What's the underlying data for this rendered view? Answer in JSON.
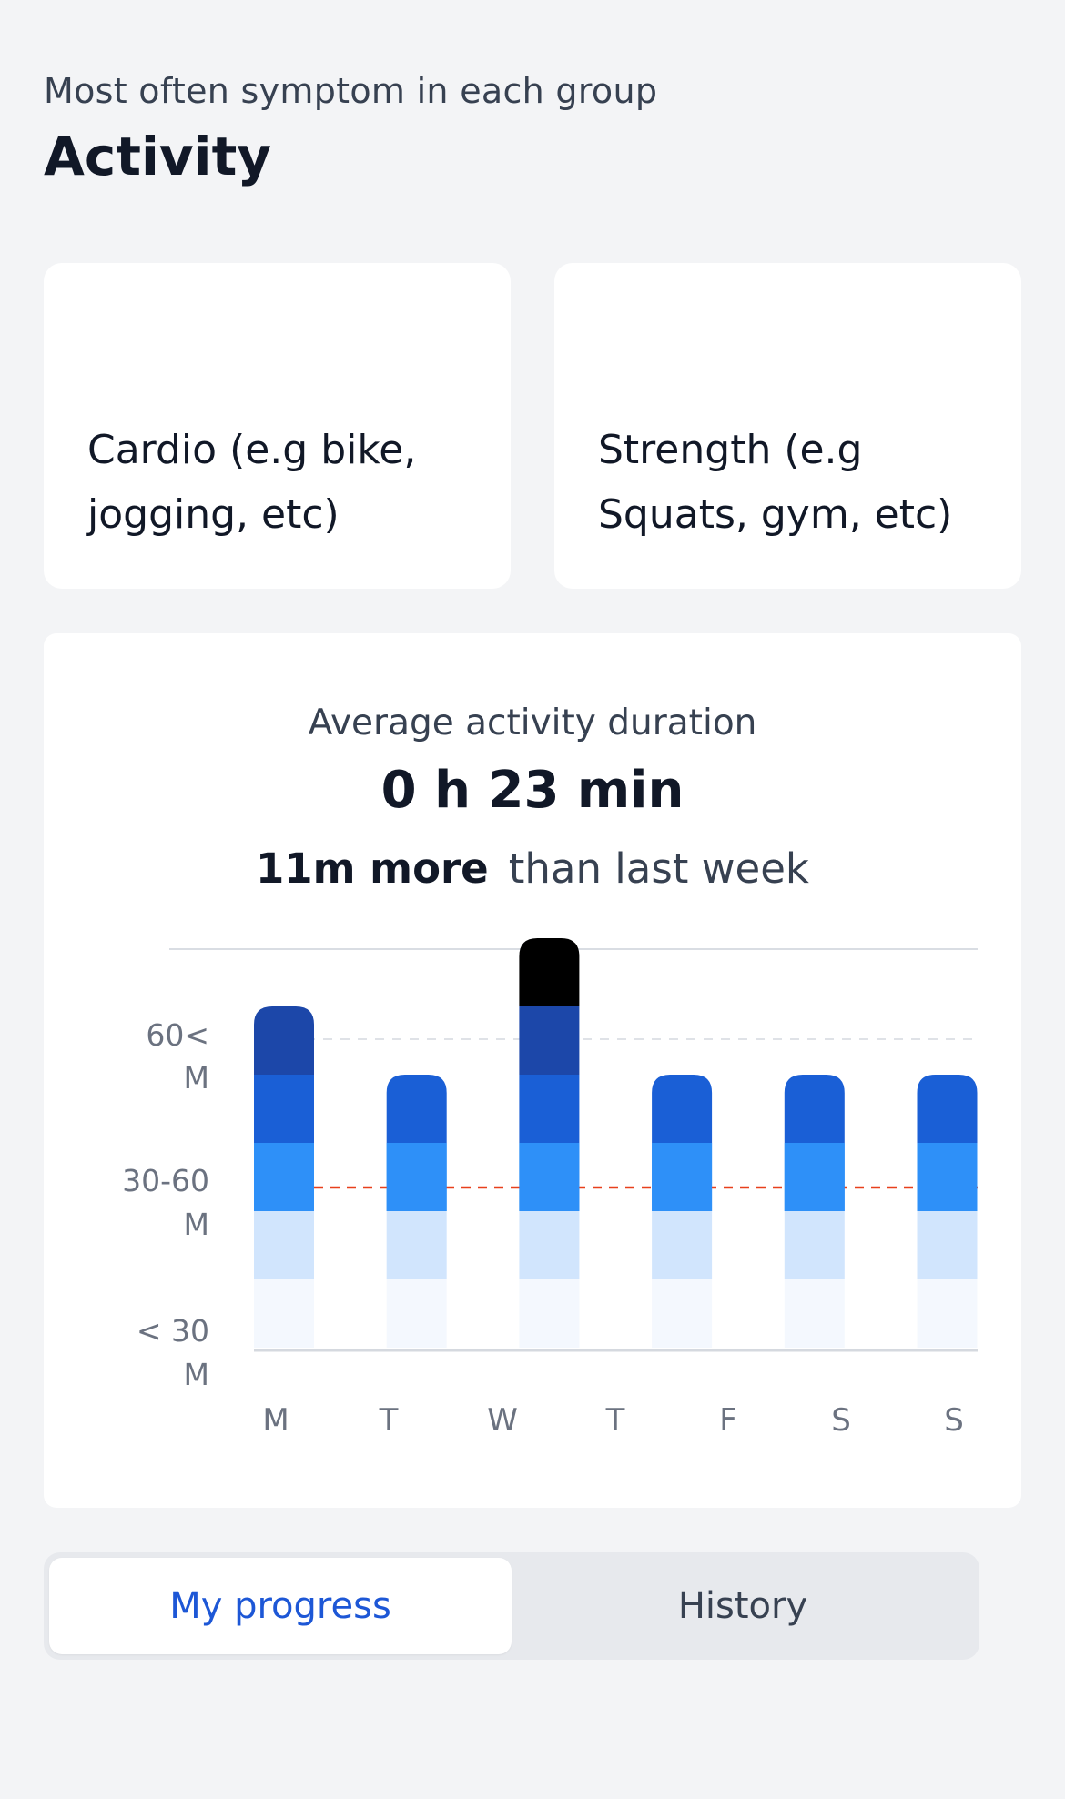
{
  "header": {
    "subtitle": "Most often symptom in each group",
    "title": "Activity"
  },
  "categories": [
    {
      "label": "Cardio (e.g bike, jogging, etc)"
    },
    {
      "label": "Strength (e.g Squats, gym, etc)"
    }
  ],
  "summary": {
    "label": "Average activity duration",
    "value": "0 h 23 min",
    "delta": "11m more",
    "delta_suffix": "than last week"
  },
  "chart_data": {
    "type": "bar",
    "categories": [
      "M",
      "T",
      "W",
      "T",
      "F",
      "S",
      "S"
    ],
    "values": [
      5,
      4,
      6,
      4,
      4,
      4,
      4
    ],
    "y_tick_labels": [
      {
        "line1": "60<",
        "line2": "M"
      },
      {
        "line1": "30-60",
        "line2": "M"
      },
      {
        "line1": "< 30",
        "line2": "M"
      }
    ],
    "colors": {
      "segments": [
        "#f4f8fe",
        "#d1e5fd",
        "#2e90f8",
        "#1a5fd6",
        "#1c47a9"
      ],
      "average_line": "#e8401c",
      "gridline": "#d9dde3",
      "baseline": "#d5d9df",
      "tick_text": "#6b7280"
    }
  },
  "tabs": {
    "my_progress": "My progress",
    "history": "History"
  }
}
